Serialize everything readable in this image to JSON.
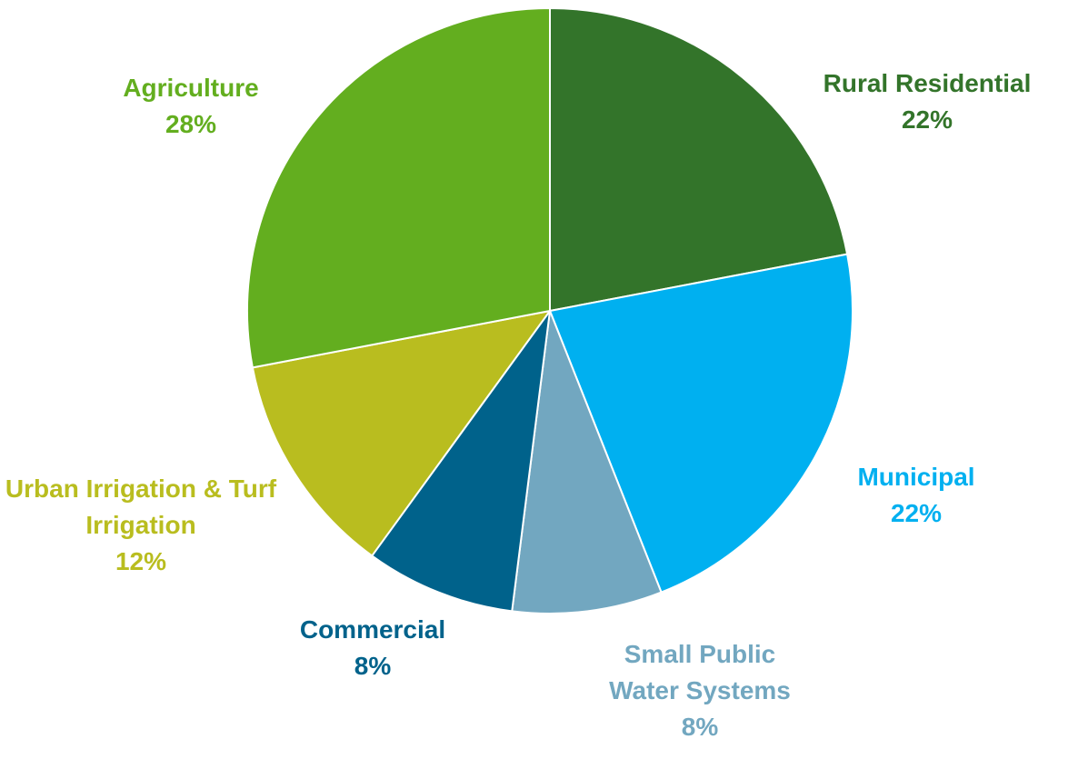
{
  "chart_data": {
    "type": "pie",
    "categories": [
      "Rural Residential",
      "Municipal",
      "Small Public Water Systems",
      "Commercial",
      "Urban Irrigation & Turf Irrigation",
      "Agriculture"
    ],
    "values": [
      22,
      22,
      8,
      8,
      12,
      28
    ],
    "value_labels": [
      "22%",
      "22%",
      "8%",
      "8%",
      "12%",
      "28%"
    ],
    "colors": [
      "#33742a",
      "#00b0f0",
      "#72a7c0",
      "#00628b",
      "#b9bd1f",
      "#63ae1f"
    ]
  }
}
